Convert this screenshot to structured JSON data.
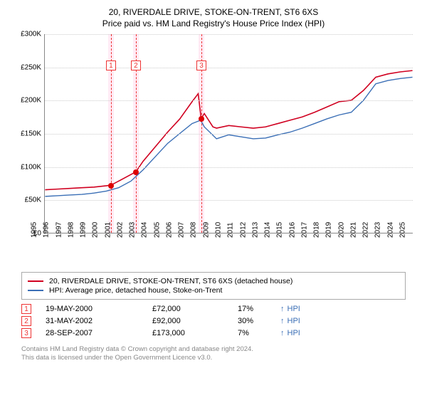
{
  "title1": "20, RIVERDALE DRIVE, STOKE-ON-TRENT, ST6 6XS",
  "title2": "Price paid vs. HM Land Registry's House Price Index (HPI)",
  "chart": {
    "type": "line",
    "ylim": [
      0,
      300
    ],
    "ytick_step": 50,
    "ylabel_prefix": "£",
    "ylabel_suffix": "K",
    "xlim": [
      1995,
      2025
    ],
    "xtick_step": 1,
    "background_color": "#ffffff",
    "grid_color": "#cccccc",
    "band_color": "#ffddee",
    "dash_color": "#ee3333",
    "yticks": [
      {
        "v": 0,
        "label": "£0"
      },
      {
        "v": 50,
        "label": "£50K"
      },
      {
        "v": 100,
        "label": "£100K"
      },
      {
        "v": 150,
        "label": "£150K"
      },
      {
        "v": 200,
        "label": "£200K"
      },
      {
        "v": 250,
        "label": "£250K"
      },
      {
        "v": 300,
        "label": "£300K"
      }
    ],
    "xticks": [
      1995,
      1996,
      1997,
      1998,
      1999,
      2000,
      2001,
      2002,
      2003,
      2004,
      2005,
      2006,
      2007,
      2008,
      2009,
      2010,
      2011,
      2012,
      2013,
      2014,
      2015,
      2016,
      2017,
      2018,
      2019,
      2020,
      2021,
      2022,
      2023,
      2024,
      2025
    ],
    "markers": [
      {
        "n": "1",
        "x": 2000.38,
        "y": 72,
        "box_y": 260
      },
      {
        "n": "2",
        "x": 2002.41,
        "y": 92,
        "box_y": 260
      },
      {
        "n": "3",
        "x": 2007.74,
        "y": 173,
        "box_y": 260
      }
    ],
    "series": [
      {
        "name": "property",
        "color": "#d00020",
        "width": 1.6,
        "points": [
          [
            1995,
            65
          ],
          [
            1996,
            66
          ],
          [
            1997,
            67
          ],
          [
            1998,
            68
          ],
          [
            1999,
            69
          ],
          [
            2000,
            71
          ],
          [
            2000.38,
            72
          ],
          [
            2001,
            78
          ],
          [
            2002,
            88
          ],
          [
            2002.41,
            92
          ],
          [
            2003,
            108
          ],
          [
            2004,
            130
          ],
          [
            2005,
            152
          ],
          [
            2006,
            172
          ],
          [
            2007,
            198
          ],
          [
            2007.5,
            210
          ],
          [
            2007.74,
            173
          ],
          [
            2008,
            180
          ],
          [
            2008.7,
            160
          ],
          [
            2009,
            158
          ],
          [
            2010,
            162
          ],
          [
            2011,
            160
          ],
          [
            2012,
            158
          ],
          [
            2013,
            160
          ],
          [
            2014,
            165
          ],
          [
            2015,
            170
          ],
          [
            2016,
            175
          ],
          [
            2017,
            182
          ],
          [
            2018,
            190
          ],
          [
            2019,
            198
          ],
          [
            2020,
            200
          ],
          [
            2021,
            215
          ],
          [
            2022,
            235
          ],
          [
            2023,
            240
          ],
          [
            2024,
            243
          ],
          [
            2025,
            245
          ]
        ]
      },
      {
        "name": "hpi",
        "color": "#3b6fb6",
        "width": 1.4,
        "points": [
          [
            1995,
            55
          ],
          [
            1996,
            56
          ],
          [
            1997,
            57
          ],
          [
            1998,
            58
          ],
          [
            1999,
            60
          ],
          [
            2000,
            63
          ],
          [
            2001,
            68
          ],
          [
            2002,
            78
          ],
          [
            2003,
            95
          ],
          [
            2004,
            115
          ],
          [
            2005,
            135
          ],
          [
            2006,
            150
          ],
          [
            2007,
            165
          ],
          [
            2007.7,
            170
          ],
          [
            2008,
            160
          ],
          [
            2009,
            142
          ],
          [
            2010,
            148
          ],
          [
            2011,
            145
          ],
          [
            2012,
            142
          ],
          [
            2013,
            143
          ],
          [
            2014,
            148
          ],
          [
            2015,
            152
          ],
          [
            2016,
            158
          ],
          [
            2017,
            165
          ],
          [
            2018,
            172
          ],
          [
            2019,
            178
          ],
          [
            2020,
            182
          ],
          [
            2021,
            200
          ],
          [
            2022,
            225
          ],
          [
            2023,
            230
          ],
          [
            2024,
            233
          ],
          [
            2025,
            235
          ]
        ]
      }
    ]
  },
  "legend": {
    "items": [
      {
        "color": "#d00020",
        "label": "20, RIVERDALE DRIVE, STOKE-ON-TRENT, ST6 6XS (detached house)"
      },
      {
        "color": "#3b6fb6",
        "label": "HPI: Average price, detached house, Stoke-on-Trent"
      }
    ]
  },
  "events": [
    {
      "n": "1",
      "date": "19-MAY-2000",
      "price": "£72,000",
      "pct": "17%",
      "dir": "↑",
      "tag": "HPI"
    },
    {
      "n": "2",
      "date": "31-MAY-2002",
      "price": "£92,000",
      "pct": "30%",
      "dir": "↑",
      "tag": "HPI"
    },
    {
      "n": "3",
      "date": "28-SEP-2007",
      "price": "£173,000",
      "pct": "7%",
      "dir": "↑",
      "tag": "HPI"
    }
  ],
  "footer1": "Contains HM Land Registry data © Crown copyright and database right 2024.",
  "footer2": "This data is licensed under the Open Government Licence v3.0."
}
